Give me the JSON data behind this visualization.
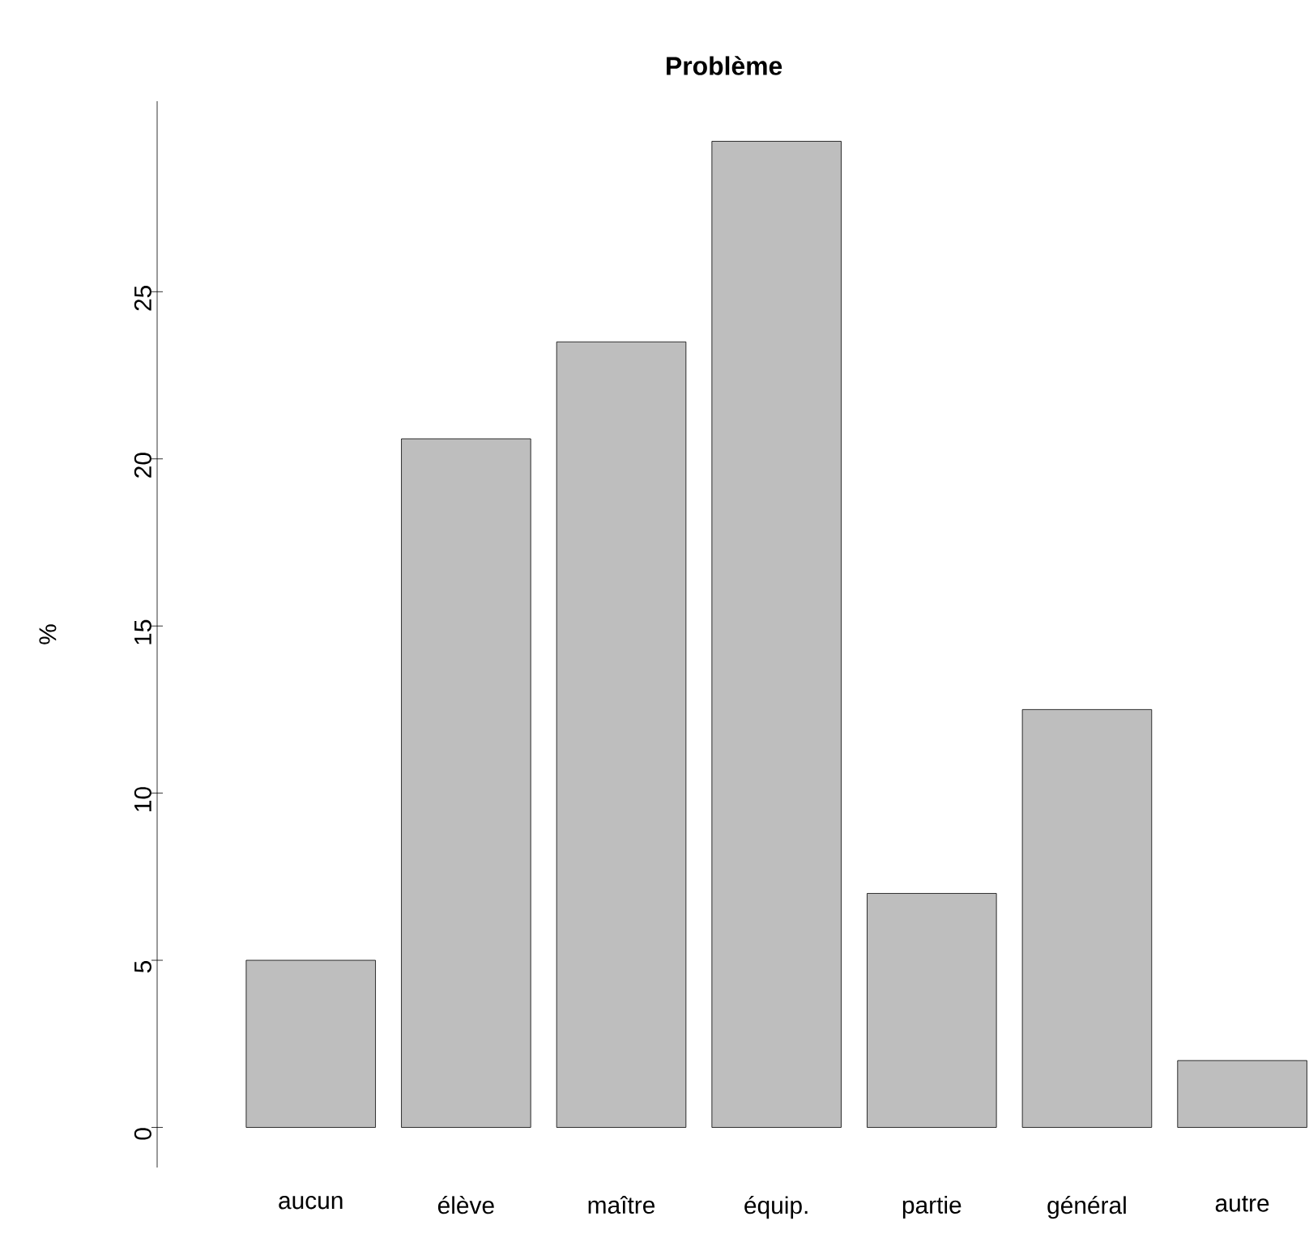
{
  "chart_data": {
    "type": "bar",
    "title": "Problème",
    "ylabel": "%",
    "categories": [
      "aucun",
      "élève",
      "maître",
      "équip.",
      "partie",
      "général",
      "autre"
    ],
    "values": [
      5,
      20.6,
      23.5,
      29.5,
      7,
      12.5,
      2
    ],
    "color": "#bebebe",
    "ylim": [
      -1.2,
      30.7
    ],
    "yticks": [
      0,
      5,
      10,
      15,
      20,
      25
    ]
  }
}
